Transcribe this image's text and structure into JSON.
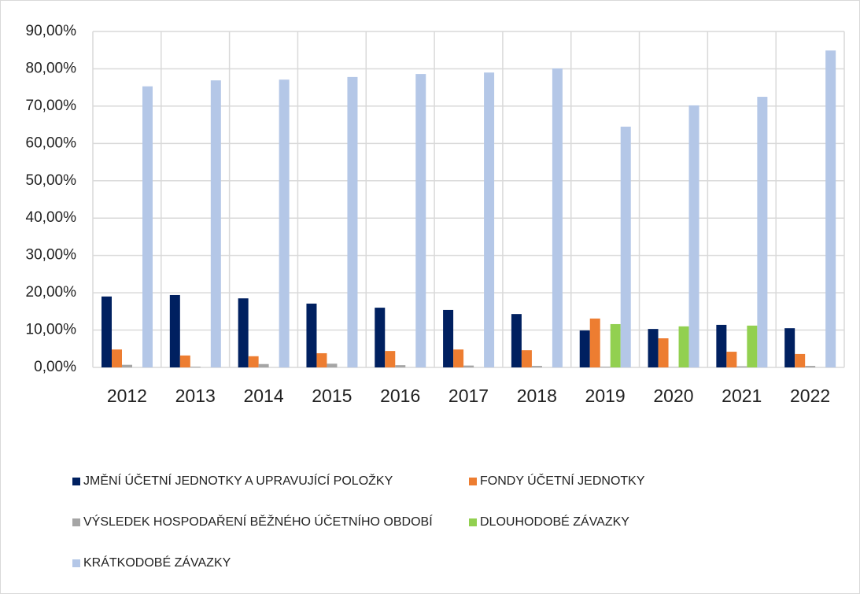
{
  "chart_data": {
    "type": "bar",
    "categories": [
      "2012",
      "2013",
      "2014",
      "2015",
      "2016",
      "2017",
      "2018",
      "2019",
      "2020",
      "2021",
      "2022"
    ],
    "series": [
      {
        "name": "JMĚNÍ ÚČETNÍ JEDNOTKY A UPRAVUJÍCÍ POLOŽKY",
        "color": "#002060",
        "values": [
          19.0,
          19.4,
          18.5,
          17.1,
          16.0,
          15.4,
          14.3,
          9.9,
          10.3,
          11.4,
          10.5
        ]
      },
      {
        "name": "FONDY ÚČETNÍ JEDNOTKY",
        "color": "#ed7d31",
        "values": [
          4.8,
          3.2,
          3.0,
          3.8,
          4.4,
          4.8,
          4.6,
          13.1,
          7.8,
          4.2,
          3.6
        ]
      },
      {
        "name": "VÝSLEDEK HOSPODAŘENÍ BĚŽNÉHO ÚČETNÍHO OBDOBÍ",
        "color": "#a5a5a5",
        "values": [
          0.7,
          0.2,
          0.9,
          1.0,
          0.6,
          0.5,
          0.4,
          0.2,
          0.1,
          0.3,
          0.4
        ]
      },
      {
        "name": "DLOUHODOBÉ ZÁVAZKY",
        "color": "#92d050",
        "values": [
          0,
          0,
          0,
          0,
          0,
          0,
          0,
          11.6,
          11.0,
          11.2,
          0
        ]
      },
      {
        "name": "KRÁTKODOBÉ ZÁVAZKY",
        "color": "#b4c7e7",
        "values": [
          75.3,
          76.9,
          77.1,
          77.8,
          78.6,
          79.0,
          80.1,
          64.5,
          70.2,
          72.5,
          84.9
        ]
      }
    ],
    "ylim": [
      0,
      90
    ],
    "yticks": [
      {
        "value": 0,
        "label": "0,00%"
      },
      {
        "value": 10,
        "label": "10,00%"
      },
      {
        "value": 20,
        "label": "20,00%"
      },
      {
        "value": 30,
        "label": "30,00%"
      },
      {
        "value": 40,
        "label": "40,00%"
      },
      {
        "value": 50,
        "label": "50,00%"
      },
      {
        "value": 60,
        "label": "60,00%"
      },
      {
        "value": 70,
        "label": "70,00%"
      },
      {
        "value": 80,
        "label": "80,00%"
      },
      {
        "value": 90,
        "label": "90,00%"
      }
    ],
    "grid": true,
    "legend": "bottom"
  }
}
